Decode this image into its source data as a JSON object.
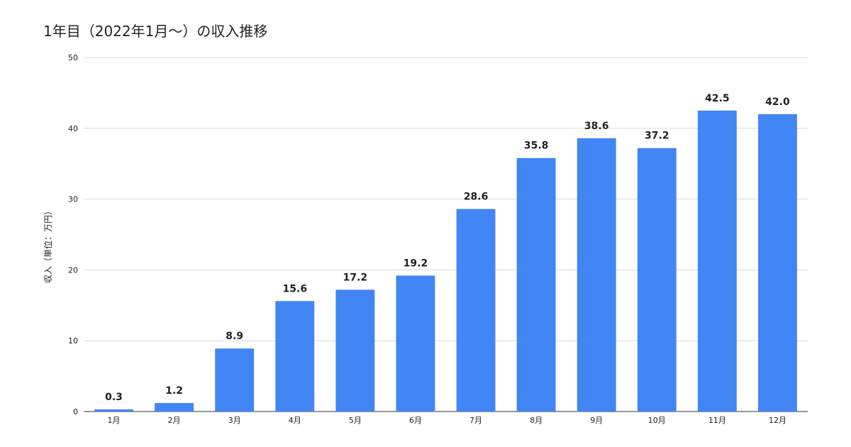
{
  "chart_data": {
    "type": "bar",
    "title": "1年目（2022年1月〜）の収入推移",
    "xlabel": "",
    "ylabel": "収入（単位：万円）",
    "categories": [
      "1月",
      "2月",
      "3月",
      "4月",
      "5月",
      "6月",
      "7月",
      "8月",
      "9月",
      "10月",
      "11月",
      "12月"
    ],
    "values": [
      0.3,
      1.2,
      8.9,
      15.6,
      17.2,
      19.2,
      28.6,
      35.8,
      38.6,
      37.2,
      42.5,
      42.0
    ],
    "value_labels": [
      "0.3",
      "1.2",
      "8.9",
      "15.6",
      "17.2",
      "19.2",
      "28.6",
      "35.8",
      "38.6",
      "37.2",
      "42.5",
      "42.0"
    ],
    "ylim": [
      0,
      50
    ],
    "yticks": [
      0,
      10,
      20,
      30,
      40,
      50
    ],
    "ytick_labels": [
      "0",
      "10",
      "20",
      "30",
      "40",
      "50"
    ],
    "grid": true,
    "legend": "none",
    "bar_color": "#4285f4"
  }
}
